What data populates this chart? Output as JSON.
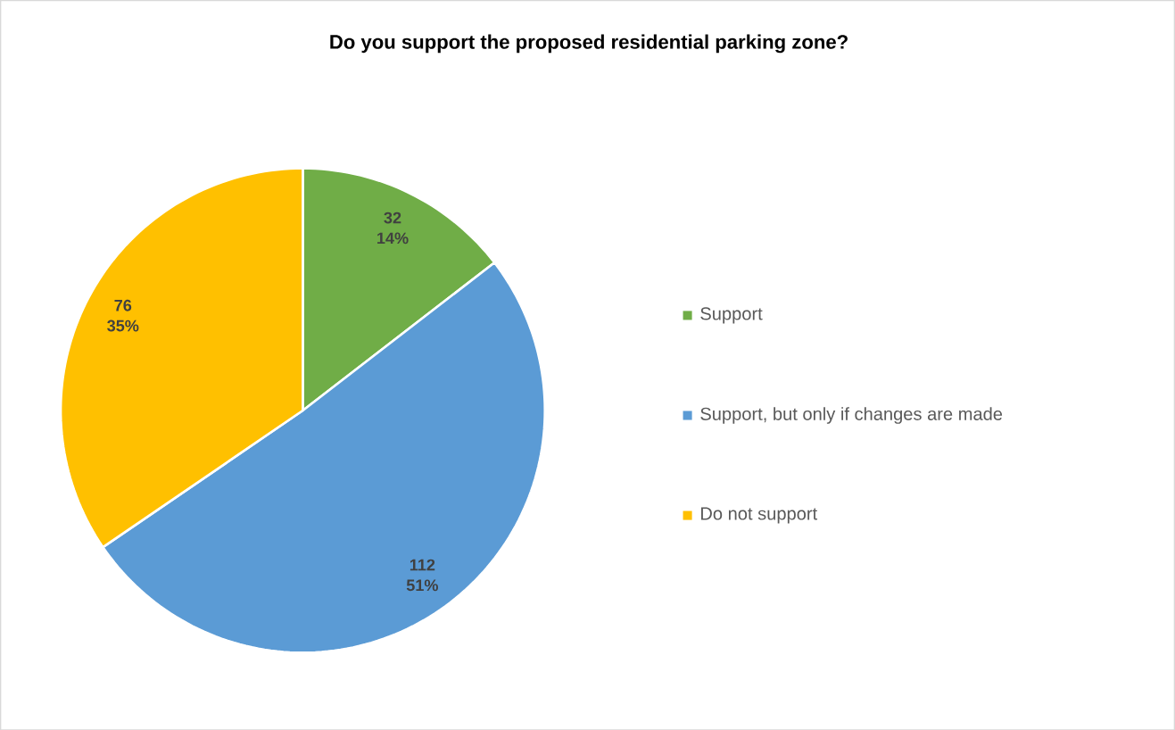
{
  "chart_data": {
    "type": "pie",
    "title": "Do you support the proposed residential parking zone?",
    "categories": [
      "Support",
      "Support, but only if changes are made",
      "Do not support"
    ],
    "values": [
      32,
      112,
      76
    ],
    "colors": [
      "#70ad47",
      "#5b9bd5",
      "#ffc000"
    ],
    "value_labels": [
      "32 14%",
      "112 51%",
      "76 35%"
    ],
    "legend": "right"
  }
}
